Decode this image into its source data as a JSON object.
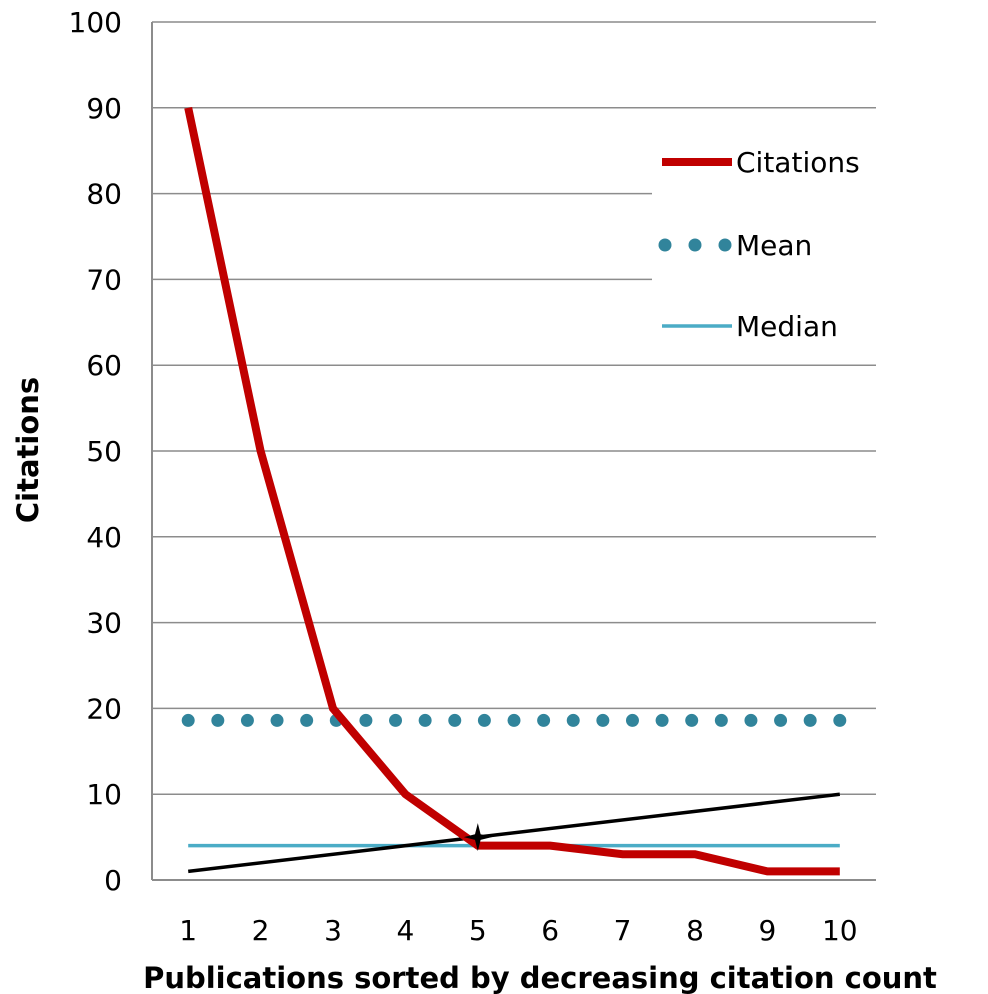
{
  "chart_data": {
    "type": "line",
    "title": "",
    "xlabel": "Publications sorted by decreasing citation count",
    "ylabel": "Citations",
    "x": [
      1,
      2,
      3,
      4,
      5,
      6,
      7,
      8,
      9,
      10
    ],
    "x_tick_labels": [
      "1",
      "2",
      "3",
      "4",
      "5",
      "6",
      "7",
      "8",
      "9",
      "10"
    ],
    "xlim": [
      0.5,
      10.5
    ],
    "ylim": [
      0,
      100
    ],
    "y_ticks": [
      0,
      10,
      20,
      30,
      40,
      50,
      60,
      70,
      80,
      90,
      100
    ],
    "grid": "horizontal",
    "legend_position": "right",
    "series": [
      {
        "name": "Citations",
        "style": "solid-thick",
        "color": "#c00000",
        "values": [
          90,
          50,
          20,
          10,
          4,
          4,
          3,
          3,
          1,
          1
        ]
      },
      {
        "name": "Mean",
        "style": "dotted",
        "color": "#31849b",
        "values": [
          18.6,
          18.6,
          18.6,
          18.6,
          18.6,
          18.6,
          18.6,
          18.6,
          18.6,
          18.6
        ]
      },
      {
        "name": "Median",
        "style": "solid-thin",
        "color": "#4bacc6",
        "values": [
          4,
          4,
          4,
          4,
          4,
          4,
          4,
          4,
          4,
          4
        ]
      }
    ],
    "reference_line": {
      "label": "",
      "color": "#000000",
      "x": [
        1,
        10
      ],
      "y": [
        1,
        10
      ]
    },
    "annotations": [
      {
        "type": "star-marker",
        "x": 5,
        "y": 5,
        "color": "#000000"
      }
    ]
  }
}
